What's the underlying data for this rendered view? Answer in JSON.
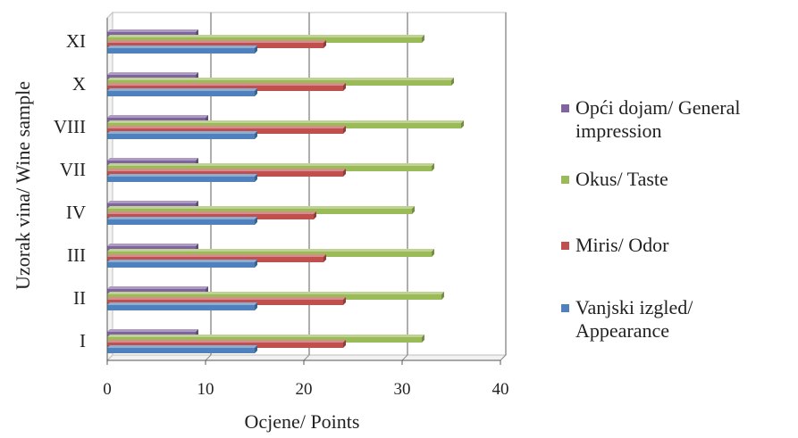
{
  "chart_data": {
    "type": "bar",
    "orientation": "horizontal",
    "categories": [
      "I",
      "II",
      "III",
      "IV",
      "VII",
      "VIII",
      "X",
      "XI"
    ],
    "series": [
      {
        "name": "Vanjski izgled/ Appearance",
        "values": [
          15,
          15,
          15,
          15,
          15,
          15,
          15,
          15
        ]
      },
      {
        "name": "Miris/ Odor",
        "values": [
          24,
          24,
          22,
          21,
          24,
          24,
          24,
          22
        ]
      },
      {
        "name": "Okus/ Taste",
        "values": [
          32,
          34,
          33,
          31,
          33,
          36,
          35,
          32
        ]
      },
      {
        "name": "Opći dojam/ General impression",
        "values": [
          9,
          10,
          9,
          9,
          9,
          10,
          9,
          9
        ]
      }
    ],
    "xlabel": "Ocjene/ Points",
    "ylabel": "Uzorak vina/ Wine sample",
    "xlim": [
      0,
      40
    ],
    "xticks": [
      "0",
      "10",
      "20",
      "30",
      "40"
    ],
    "grid": true,
    "legend_position": "right",
    "colors": [
      "#4f81bd",
      "#c0504d",
      "#9bbb59",
      "#8064a2"
    ]
  },
  "legend": [
    {
      "label": "Opći dojam/ General impression",
      "color": "#8064a2"
    },
    {
      "label": "Okus/ Taste",
      "color": "#9bbb59"
    },
    {
      "label": "Miris/ Odor",
      "color": "#c0504d"
    },
    {
      "label": "Vanjski izgled/ Appearance",
      "color": "#4f81bd"
    }
  ]
}
